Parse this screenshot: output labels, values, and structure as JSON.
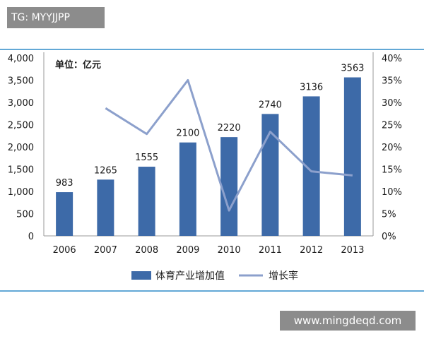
{
  "watermarks": {
    "top": "TG: MYYJJPP",
    "bottom": "www.mingdeqd.com"
  },
  "chart_data": {
    "type": "bar+line",
    "unit_label": "单位：亿元",
    "categories": [
      "2006",
      "2007",
      "2008",
      "2009",
      "2010",
      "2011",
      "2012",
      "2013"
    ],
    "series": [
      {
        "name": "体育产业增加值",
        "type": "bar",
        "axis": "left",
        "values": [
          983,
          1265,
          1555,
          2100,
          2220,
          2740,
          3136,
          3563
        ]
      },
      {
        "name": "增长率",
        "type": "line",
        "axis": "right",
        "values": [
          null,
          28.7,
          22.9,
          35.0,
          5.7,
          23.4,
          14.5,
          13.6
        ]
      }
    ],
    "left_axis": {
      "ylim": [
        0,
        4000
      ],
      "ticks": [
        "0",
        "500",
        "1,000",
        "1,500",
        "2,000",
        "2,500",
        "3,000",
        "3,500",
        "4,000"
      ]
    },
    "right_axis": {
      "ylim": [
        0,
        40
      ],
      "ticks": [
        "0%",
        "5%",
        "10%",
        "15%",
        "20%",
        "25%",
        "30%",
        "35%",
        "40%"
      ]
    },
    "legend_position": "bottom",
    "colors": {
      "bar": "#3d6aa8",
      "line": "#8ca0cc",
      "border": "#62a8d6",
      "text": "#1a1a1a"
    }
  }
}
